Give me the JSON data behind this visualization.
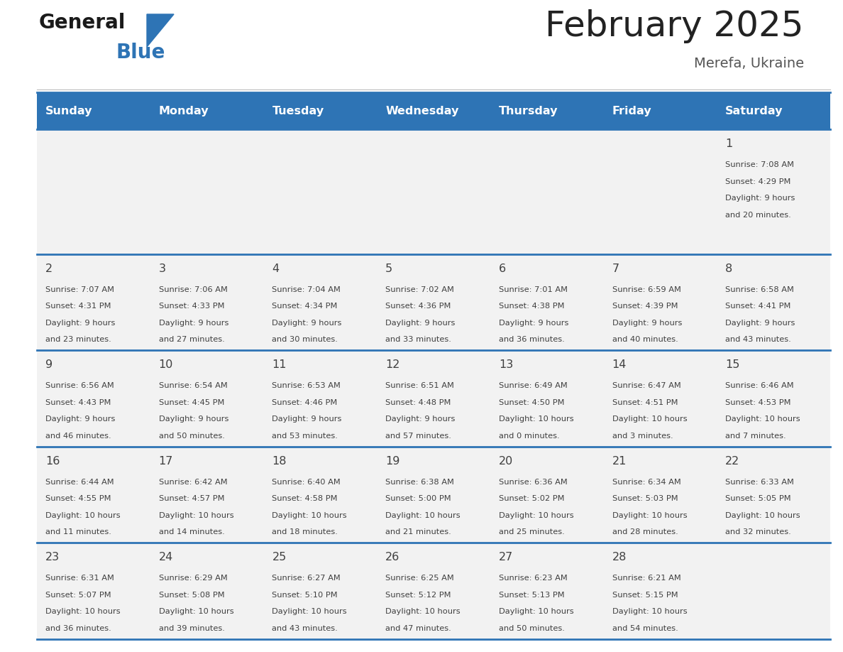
{
  "title": "February 2025",
  "subtitle": "Merefa, Ukraine",
  "days_of_week": [
    "Sunday",
    "Monday",
    "Tuesday",
    "Wednesday",
    "Thursday",
    "Friday",
    "Saturday"
  ],
  "header_bg": "#2E74B5",
  "header_text_color": "#FFFFFF",
  "cell_bg": "#F2F2F2",
  "border_color": "#2E74B5",
  "text_color": "#404040",
  "title_color": "#222222",
  "subtitle_color": "#555555",
  "logo_general_color": "#1a1a1a",
  "logo_blue_color": "#2E74B5",
  "calendar_data": [
    [
      null,
      null,
      null,
      null,
      null,
      null,
      {
        "day": 1,
        "sunrise": "7:08 AM",
        "sunset": "4:29 PM",
        "daylight": "9 hours and 20 minutes"
      }
    ],
    [
      {
        "day": 2,
        "sunrise": "7:07 AM",
        "sunset": "4:31 PM",
        "daylight": "9 hours and 23 minutes"
      },
      {
        "day": 3,
        "sunrise": "7:06 AM",
        "sunset": "4:33 PM",
        "daylight": "9 hours and 27 minutes"
      },
      {
        "day": 4,
        "sunrise": "7:04 AM",
        "sunset": "4:34 PM",
        "daylight": "9 hours and 30 minutes"
      },
      {
        "day": 5,
        "sunrise": "7:02 AM",
        "sunset": "4:36 PM",
        "daylight": "9 hours and 33 minutes"
      },
      {
        "day": 6,
        "sunrise": "7:01 AM",
        "sunset": "4:38 PM",
        "daylight": "9 hours and 36 minutes"
      },
      {
        "day": 7,
        "sunrise": "6:59 AM",
        "sunset": "4:39 PM",
        "daylight": "9 hours and 40 minutes"
      },
      {
        "day": 8,
        "sunrise": "6:58 AM",
        "sunset": "4:41 PM",
        "daylight": "9 hours and 43 minutes"
      }
    ],
    [
      {
        "day": 9,
        "sunrise": "6:56 AM",
        "sunset": "4:43 PM",
        "daylight": "9 hours and 46 minutes"
      },
      {
        "day": 10,
        "sunrise": "6:54 AM",
        "sunset": "4:45 PM",
        "daylight": "9 hours and 50 minutes"
      },
      {
        "day": 11,
        "sunrise": "6:53 AM",
        "sunset": "4:46 PM",
        "daylight": "9 hours and 53 minutes"
      },
      {
        "day": 12,
        "sunrise": "6:51 AM",
        "sunset": "4:48 PM",
        "daylight": "9 hours and 57 minutes"
      },
      {
        "day": 13,
        "sunrise": "6:49 AM",
        "sunset": "4:50 PM",
        "daylight": "10 hours and 0 minutes"
      },
      {
        "day": 14,
        "sunrise": "6:47 AM",
        "sunset": "4:51 PM",
        "daylight": "10 hours and 3 minutes"
      },
      {
        "day": 15,
        "sunrise": "6:46 AM",
        "sunset": "4:53 PM",
        "daylight": "10 hours and 7 minutes"
      }
    ],
    [
      {
        "day": 16,
        "sunrise": "6:44 AM",
        "sunset": "4:55 PM",
        "daylight": "10 hours and 11 minutes"
      },
      {
        "day": 17,
        "sunrise": "6:42 AM",
        "sunset": "4:57 PM",
        "daylight": "10 hours and 14 minutes"
      },
      {
        "day": 18,
        "sunrise": "6:40 AM",
        "sunset": "4:58 PM",
        "daylight": "10 hours and 18 minutes"
      },
      {
        "day": 19,
        "sunrise": "6:38 AM",
        "sunset": "5:00 PM",
        "daylight": "10 hours and 21 minutes"
      },
      {
        "day": 20,
        "sunrise": "6:36 AM",
        "sunset": "5:02 PM",
        "daylight": "10 hours and 25 minutes"
      },
      {
        "day": 21,
        "sunrise": "6:34 AM",
        "sunset": "5:03 PM",
        "daylight": "10 hours and 28 minutes"
      },
      {
        "day": 22,
        "sunrise": "6:33 AM",
        "sunset": "5:05 PM",
        "daylight": "10 hours and 32 minutes"
      }
    ],
    [
      {
        "day": 23,
        "sunrise": "6:31 AM",
        "sunset": "5:07 PM",
        "daylight": "10 hours and 36 minutes"
      },
      {
        "day": 24,
        "sunrise": "6:29 AM",
        "sunset": "5:08 PM",
        "daylight": "10 hours and 39 minutes"
      },
      {
        "day": 25,
        "sunrise": "6:27 AM",
        "sunset": "5:10 PM",
        "daylight": "10 hours and 43 minutes"
      },
      {
        "day": 26,
        "sunrise": "6:25 AM",
        "sunset": "5:12 PM",
        "daylight": "10 hours and 47 minutes"
      },
      {
        "day": 27,
        "sunrise": "6:23 AM",
        "sunset": "5:13 PM",
        "daylight": "10 hours and 50 minutes"
      },
      {
        "day": 28,
        "sunrise": "6:21 AM",
        "sunset": "5:15 PM",
        "daylight": "10 hours and 54 minutes"
      },
      null
    ]
  ]
}
